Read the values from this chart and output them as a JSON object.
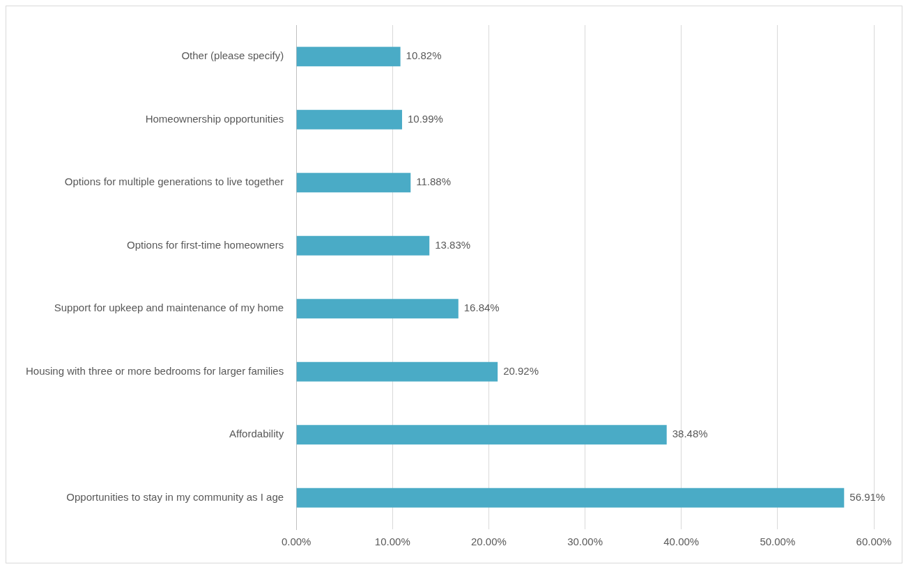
{
  "chart_data": {
    "type": "bar",
    "orientation": "horizontal",
    "categories": [
      "Other (please specify)",
      "Homeownership opportunities",
      "Options for multiple generations to live together",
      "Options for first-time homeowners",
      "Support for upkeep and maintenance of my home",
      "Housing with three or more bedrooms for larger families",
      "Affordability",
      "Opportunities to stay in my community as I age"
    ],
    "values": [
      10.82,
      10.99,
      11.88,
      13.83,
      16.84,
      20.92,
      38.48,
      56.91
    ],
    "value_labels": [
      "10.82%",
      "10.99%",
      "11.88%",
      "13.83%",
      "16.84%",
      "20.92%",
      "38.48%",
      "56.91%"
    ],
    "color": "#4aabc6",
    "xlim": [
      0,
      60
    ],
    "xticks": [
      {
        "value": 0,
        "label": "0.00%"
      },
      {
        "value": 10,
        "label": "10.00%"
      },
      {
        "value": 20,
        "label": "20.00%"
      },
      {
        "value": 30,
        "label": "30.00%"
      },
      {
        "value": 40,
        "label": "40.00%"
      },
      {
        "value": 50,
        "label": "50.00%"
      },
      {
        "value": 60,
        "label": "60.00%"
      }
    ],
    "grid": "x",
    "legend": false
  }
}
